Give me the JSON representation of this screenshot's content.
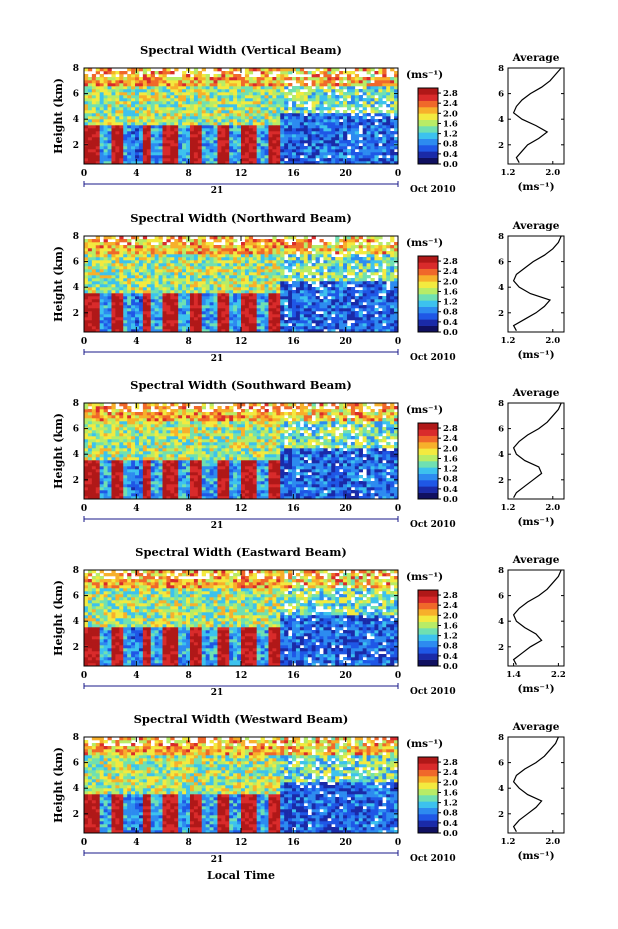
{
  "footer_xlabel": "Local Time",
  "colorbar": {
    "unit": "(ms⁻¹)",
    "ticks": [
      "0.0",
      "0.4",
      "0.8",
      "1.2",
      "1.6",
      "2.0",
      "2.4",
      "2.8"
    ],
    "range": [
      0,
      3.0
    ],
    "colors": [
      "#101060",
      "#1a2aa8",
      "#1f57e6",
      "#2d8bf0",
      "#3cc2ee",
      "#6fe0b2",
      "#b8ec66",
      "#f3ea3f",
      "#f7b02b",
      "#f0682a",
      "#d92b2b",
      "#b01818"
    ]
  },
  "panels": [
    {
      "title": "Spectral Width (Vertical Beam)",
      "ylabel": "Height (km)",
      "yticks": [
        "2",
        "4",
        "6",
        "8"
      ],
      "xticks": [
        "0",
        "4",
        "8",
        "12",
        "16",
        "20",
        "0"
      ],
      "date_label": "21",
      "date_suffix": "Oct 2010",
      "avg_title": "Average",
      "avg_xlabel": "(ms⁻¹)",
      "avg_xticks": [
        "1.2",
        "2.0"
      ],
      "avg_yticks": [
        "2",
        "4",
        "6",
        "8"
      ],
      "chart_data": {
        "type": "heatmap",
        "x_range_hours": [
          0,
          24
        ],
        "y_range_km": [
          0.5,
          8.0
        ],
        "avg_profile": {
          "xlim": [
            1.2,
            2.2
          ],
          "height_km": [
            0.6,
            1.0,
            1.5,
            2.0,
            2.5,
            3.0,
            3.5,
            4.0,
            4.5,
            5.0,
            5.5,
            6.0,
            6.5,
            7.0,
            7.5,
            8.0
          ],
          "width": [
            1.4,
            1.35,
            1.45,
            1.55,
            1.75,
            1.9,
            1.7,
            1.45,
            1.3,
            1.35,
            1.45,
            1.6,
            1.8,
            1.95,
            2.05,
            2.15
          ]
        }
      }
    },
    {
      "title": "Spectral Width (Northward Beam)",
      "ylabel": "Height (km)",
      "yticks": [
        "2",
        "4",
        "6",
        "8"
      ],
      "xticks": [
        "0",
        "4",
        "8",
        "12",
        "16",
        "20",
        "0"
      ],
      "date_label": "21",
      "date_suffix": "Oct 2010",
      "avg_title": "Average",
      "avg_xlabel": "(ms⁻¹)",
      "avg_xticks": [
        "1.2",
        "2.0"
      ],
      "avg_yticks": [
        "2",
        "4",
        "6",
        "8"
      ],
      "chart_data": {
        "type": "heatmap",
        "x_range_hours": [
          0,
          24
        ],
        "y_range_km": [
          0.5,
          8.0
        ],
        "avg_profile": {
          "xlim": [
            1.2,
            2.2
          ],
          "height_km": [
            0.6,
            1.0,
            1.5,
            2.0,
            2.5,
            3.0,
            3.5,
            4.0,
            4.5,
            5.0,
            5.5,
            6.0,
            6.5,
            7.0,
            7.5,
            8.0
          ],
          "width": [
            1.35,
            1.3,
            1.5,
            1.7,
            1.85,
            1.95,
            1.6,
            1.4,
            1.3,
            1.35,
            1.5,
            1.65,
            1.85,
            2.0,
            2.1,
            2.15
          ]
        }
      }
    },
    {
      "title": "Spectral Width (Southward Beam)",
      "ylabel": "Height (km)",
      "yticks": [
        "2",
        "4",
        "6",
        "8"
      ],
      "xticks": [
        "0",
        "4",
        "8",
        "12",
        "16",
        "20",
        "0"
      ],
      "date_label": "21",
      "date_suffix": "Oct 2010",
      "avg_title": "Average",
      "avg_xlabel": "(ms⁻¹)",
      "avg_xticks": [
        "1.2",
        "2.0"
      ],
      "avg_yticks": [
        "2",
        "4",
        "6",
        "8"
      ],
      "chart_data": {
        "type": "heatmap",
        "x_range_hours": [
          0,
          24
        ],
        "y_range_km": [
          0.5,
          8.0
        ],
        "avg_profile": {
          "xlim": [
            1.2,
            2.2
          ],
          "height_km": [
            0.6,
            1.0,
            1.5,
            2.0,
            2.5,
            3.0,
            3.5,
            4.0,
            4.5,
            5.0,
            5.5,
            6.0,
            6.5,
            7.0,
            7.5,
            8.0
          ],
          "width": [
            1.3,
            1.35,
            1.5,
            1.65,
            1.8,
            1.75,
            1.5,
            1.35,
            1.3,
            1.4,
            1.55,
            1.75,
            1.9,
            2.0,
            2.1,
            2.15
          ]
        }
      }
    },
    {
      "title": "Spectral Width (Eastward Beam)",
      "ylabel": "Height (km)",
      "yticks": [
        "2",
        "4",
        "6",
        "8"
      ],
      "xticks": [
        "0",
        "4",
        "8",
        "12",
        "16",
        "20",
        "0"
      ],
      "date_label": "21",
      "date_suffix": "Oct 2010",
      "avg_title": "Average",
      "avg_xlabel": "(ms⁻¹)",
      "avg_xticks": [
        "1.4",
        "2.2"
      ],
      "avg_yticks": [
        "2",
        "4",
        "6",
        "8"
      ],
      "chart_data": {
        "type": "heatmap",
        "x_range_hours": [
          0,
          24
        ],
        "y_range_km": [
          0.5,
          8.0
        ],
        "avg_profile": {
          "xlim": [
            1.3,
            2.3
          ],
          "height_km": [
            0.6,
            1.0,
            1.5,
            2.0,
            2.5,
            3.0,
            3.5,
            4.0,
            4.5,
            5.0,
            5.5,
            6.0,
            6.5,
            7.0,
            7.5,
            8.0
          ],
          "width": [
            1.45,
            1.4,
            1.55,
            1.7,
            1.9,
            1.8,
            1.6,
            1.45,
            1.4,
            1.5,
            1.65,
            1.85,
            2.0,
            2.1,
            2.2,
            2.25
          ]
        }
      }
    },
    {
      "title": "Spectral Width (Westward Beam)",
      "ylabel": "Height (km)",
      "yticks": [
        "2",
        "4",
        "6",
        "8"
      ],
      "xticks": [
        "0",
        "4",
        "8",
        "12",
        "16",
        "20",
        "0"
      ],
      "date_label": "21",
      "date_suffix": "Oct 2010",
      "avg_title": "Average",
      "avg_xlabel": "(ms⁻¹)",
      "avg_xticks": [
        "1.2",
        "2.0"
      ],
      "avg_yticks": [
        "2",
        "4",
        "6",
        "8"
      ],
      "chart_data": {
        "type": "heatmap",
        "x_range_hours": [
          0,
          24
        ],
        "y_range_km": [
          0.5,
          8.0
        ],
        "avg_profile": {
          "xlim": [
            1.2,
            2.2
          ],
          "height_km": [
            0.6,
            1.0,
            1.5,
            2.0,
            2.5,
            3.0,
            3.5,
            4.0,
            4.5,
            5.0,
            5.5,
            6.0,
            6.5,
            7.0,
            7.5,
            8.0
          ],
          "width": [
            1.35,
            1.3,
            1.4,
            1.55,
            1.7,
            1.8,
            1.55,
            1.4,
            1.3,
            1.35,
            1.5,
            1.7,
            1.85,
            1.95,
            2.05,
            2.1
          ]
        }
      }
    }
  ]
}
